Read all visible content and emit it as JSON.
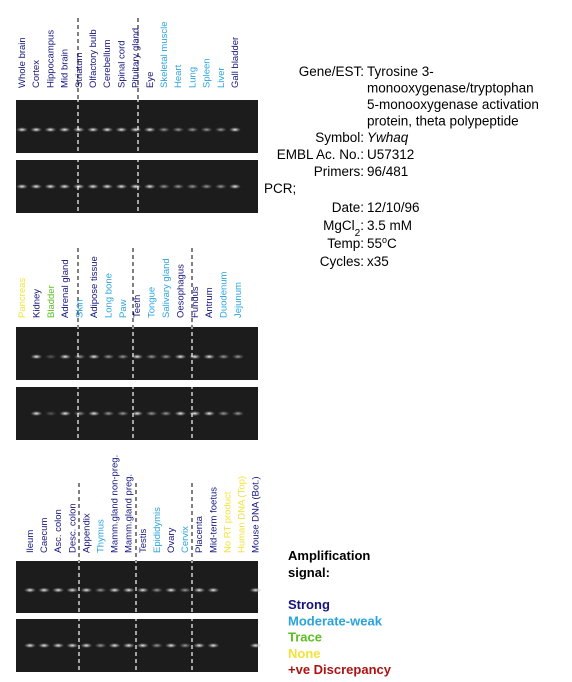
{
  "legend": {
    "title_lines": [
      "Amplification",
      "signal:"
    ],
    "items": [
      {
        "label": "Strong",
        "color": "#14147a"
      },
      {
        "label": "Moderate-weak",
        "color": "#2aa4dc"
      },
      {
        "label": "Trace",
        "color": "#5cbf22"
      },
      {
        "label": "None",
        "color": "#f2e23a"
      },
      {
        "label": "+ve Discrepancy",
        "color": "#b01212"
      }
    ]
  },
  "info": {
    "gene_label": "Gene/EST:",
    "gene_lines": [
      "Tyrosine 3-",
      "monooxygenase/tryptophan",
      "5-monooxygenase activation",
      "protein, theta polypeptide"
    ],
    "symbol_label": "Symbol:",
    "symbol": "Ywhaq",
    "embl_label": "EMBL Ac. No.:",
    "embl": "U57312",
    "primers_label": "Primers:",
    "primers": "96/481",
    "pcr_label": "PCR;",
    "date_label": "Date:",
    "date": "12/10/96",
    "mgcl_label": "MgCl",
    "mgcl_sub": "2",
    "mgcl_colon": ":",
    "mgcl": "3.5 mM",
    "temp_label": "Temp:",
    "temp": "55",
    "temp_sup": "o",
    "temp_unit": "C",
    "cycles_label": "Cycles:",
    "cycles": "x35"
  },
  "panels": [
    {
      "lanes": [
        {
          "label": "Whole brain",
          "signal": 0
        },
        {
          "label": "Cortex",
          "signal": 0
        },
        {
          "label": "Hippocampus",
          "signal": 0
        },
        {
          "label": "Mid brain",
          "signal": 0
        },
        {
          "label": "Striatum",
          "signal": 0
        },
        {
          "label": "Olfactory bulb",
          "signal": 0
        },
        {
          "label": "Cerebellum",
          "signal": 0
        },
        {
          "label": "Spinal cord",
          "signal": 0
        },
        {
          "label": "Pituitary gland",
          "signal": 0
        },
        {
          "label": "Eye",
          "signal": 0
        },
        {
          "label": "Skeletal muscle",
          "signal": 1
        },
        {
          "label": "Heart",
          "signal": 1
        },
        {
          "label": "Lung",
          "signal": 1
        },
        {
          "label": "Spleen",
          "signal": 1
        },
        {
          "label": "Liver",
          "signal": 1
        },
        {
          "label": "Gall bladder",
          "signal": 0
        }
      ]
    },
    {
      "lanes": [
        {
          "label": "Pancreas",
          "signal": 3
        },
        {
          "label": "Kidney",
          "signal": 0
        },
        {
          "label": "Bladder",
          "signal": 2
        },
        {
          "label": "Adrenal gland",
          "signal": 0
        },
        {
          "label": "Skin",
          "signal": 1
        },
        {
          "label": "Adipose tissue",
          "signal": 0
        },
        {
          "label": "Long bone",
          "signal": 1
        },
        {
          "label": "Paw",
          "signal": 1
        },
        {
          "label": "Teeth",
          "signal": 0
        },
        {
          "label": "Tongue",
          "signal": 1
        },
        {
          "label": "Salivary gland",
          "signal": 1
        },
        {
          "label": "Oesophagus",
          "signal": 0
        },
        {
          "label": "Fundus",
          "signal": 0
        },
        {
          "label": "Antrum",
          "signal": 0
        },
        {
          "label": "Duodenum",
          "signal": 1
        },
        {
          "label": "Jejunum",
          "signal": 1
        }
      ]
    },
    {
      "lanes": [
        {
          "label": "Ileum",
          "signal": 0
        },
        {
          "label": "Caecum",
          "signal": 0
        },
        {
          "label": "Asc. colon",
          "signal": 0
        },
        {
          "label": "Desc. colon",
          "signal": 0
        },
        {
          "label": "Appendix",
          "signal": 0
        },
        {
          "label": "Thymus",
          "signal": 1
        },
        {
          "label": "Mamm.gland non-preg.",
          "signal": 0
        },
        {
          "label": "Mamm.gland preg.",
          "signal": 0
        },
        {
          "label": "Testis",
          "signal": 0
        },
        {
          "label": "Epididymis",
          "signal": 1
        },
        {
          "label": "Ovary",
          "signal": 0
        },
        {
          "label": "Cervix",
          "signal": 1
        },
        {
          "label": "Placenta",
          "signal": 0
        },
        {
          "label": "Mid-term foetus",
          "signal": 0
        },
        {
          "label": "No RT product",
          "signal": 3
        },
        {
          "label": "Human DNA (Top)",
          "signal": 3
        },
        {
          "label": "Mouse DNA (Bot.)",
          "signal": 0
        }
      ]
    }
  ]
}
